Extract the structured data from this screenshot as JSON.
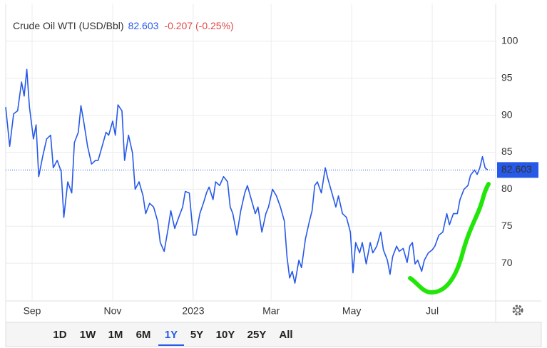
{
  "chart_data": {
    "type": "line",
    "title": "Crude Oil WTI (USD/Bbl)",
    "price_label": "82.603",
    "change_label": "-0.207 (-0.25%)",
    "color": "#2659e8",
    "x": [
      -20,
      -17,
      -14,
      -11,
      -8,
      -6,
      -4,
      -2,
      1,
      3,
      5,
      8,
      11,
      14,
      16,
      19,
      22,
      24,
      27,
      30,
      32,
      35,
      37,
      39,
      42,
      45,
      48,
      50,
      53,
      56,
      58,
      61,
      63,
      65,
      68,
      70,
      73,
      76,
      78,
      81,
      84,
      86,
      89,
      92,
      95,
      97,
      100,
      103,
      105,
      108,
      111,
      114,
      116,
      119,
      122,
      124,
      127,
      130,
      132,
      134,
      137,
      139,
      142,
      145,
      148,
      150,
      152,
      155,
      158,
      161,
      163,
      166,
      169,
      171,
      174,
      177,
      179,
      182,
      185,
      188,
      191,
      193,
      195,
      197,
      199,
      202,
      204,
      207,
      210,
      212,
      214,
      216,
      219,
      222,
      224,
      227,
      230,
      232,
      235,
      238,
      241,
      243,
      245,
      248,
      250,
      253,
      256,
      258,
      261,
      264,
      266,
      269,
      271,
      273,
      276,
      278,
      281,
      284,
      286,
      288,
      290,
      292,
      295,
      297,
      300,
      303,
      305,
      308,
      311,
      314,
      316,
      319,
      322,
      324,
      327,
      330,
      332,
      335,
      337,
      339,
      341,
      343,
      345
    ],
    "values": [
      91.1,
      85.8,
      90.2,
      90.6,
      94.5,
      92.6,
      96.2,
      91.1,
      86.8,
      88.7,
      81.7,
      84.4,
      86.8,
      87.3,
      82.9,
      83.9,
      82.4,
      76.2,
      81.0,
      79.5,
      86.3,
      87.7,
      91.3,
      89.2,
      85.8,
      83.4,
      83.9,
      83.9,
      85.8,
      87.7,
      87.3,
      89.2,
      87.3,
      91.4,
      90.6,
      83.9,
      87.3,
      84.9,
      80.0,
      81.0,
      79.1,
      76.7,
      78.1,
      77.6,
      75.7,
      72.8,
      71.6,
      74.7,
      77.1,
      74.7,
      76.2,
      77.6,
      79.7,
      79.5,
      73.8,
      73.8,
      76.7,
      78.3,
      79.5,
      80.3,
      78.6,
      81.0,
      80.5,
      81.7,
      81.0,
      77.6,
      76.7,
      73.8,
      77.1,
      79.5,
      80.5,
      78.6,
      76.7,
      77.6,
      74.2,
      76.7,
      77.6,
      80.0,
      79.1,
      77.6,
      75.7,
      70.9,
      68.0,
      68.9,
      67.3,
      70.4,
      69.4,
      73.3,
      75.7,
      77.1,
      80.5,
      81.0,
      79.5,
      82.9,
      81.4,
      79.5,
      77.6,
      79.1,
      76.7,
      76.2,
      74.2,
      68.7,
      72.8,
      71.4,
      72.8,
      69.9,
      72.8,
      71.4,
      72.3,
      74.2,
      71.8,
      70.4,
      68.5,
      70.9,
      72.3,
      71.6,
      72.0,
      70.1,
      72.3,
      72.8,
      69.9,
      70.4,
      68.9,
      70.4,
      71.4,
      71.8,
      72.3,
      73.8,
      74.2,
      76.7,
      75.2,
      76.7,
      76.7,
      78.6,
      80.0,
      80.5,
      81.9,
      82.6,
      82.0,
      82.9,
      84.4,
      82.9,
      82.603
    ],
    "xlim": [
      -20,
      351
    ],
    "xticks": [
      {
        "value": 0,
        "label": "Sep"
      },
      {
        "value": 61,
        "label": "Nov"
      },
      {
        "value": 122,
        "label": "2023"
      },
      {
        "value": 181,
        "label": "Mar"
      },
      {
        "value": 242,
        "label": "May"
      },
      {
        "value": 303,
        "label": "Jul"
      }
    ],
    "ylim": [
      64.9,
      105.1
    ],
    "yticks": [
      70,
      75,
      80,
      85,
      90,
      95,
      100
    ],
    "grid": true,
    "ranges": [
      "1D",
      "1W",
      "1M",
      "6M",
      "1Y",
      "5Y",
      "10Y",
      "25Y",
      "All"
    ],
    "selected_range": "1Y"
  }
}
